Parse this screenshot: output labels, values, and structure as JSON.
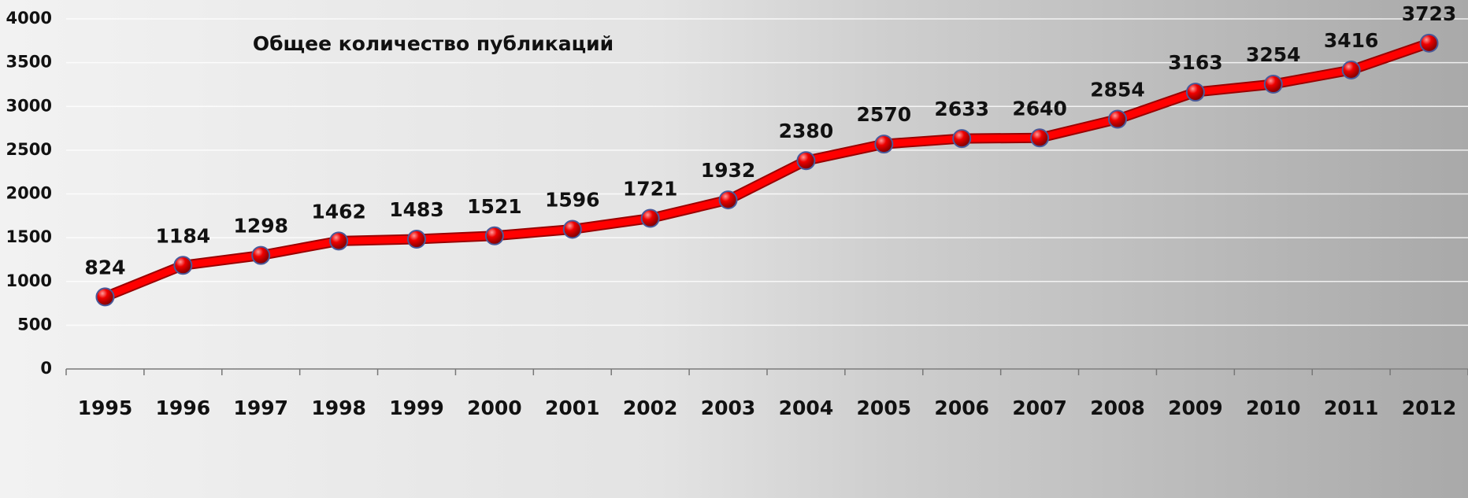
{
  "chart_data": {
    "type": "line",
    "title": "Общее количество публикаций",
    "categories": [
      "1995",
      "1996",
      "1997",
      "1998",
      "1999",
      "2000",
      "2001",
      "2002",
      "2003",
      "2004",
      "2005",
      "2006",
      "2007",
      "2008",
      "2009",
      "2010",
      "2011",
      "2012"
    ],
    "series": [
      {
        "name": "Общее количество публикаций",
        "color": "#ff0000",
        "values": [
          824,
          1184,
          1298,
          1462,
          1483,
          1521,
          1596,
          1721,
          1932,
          2380,
          2570,
          2633,
          2640,
          2854,
          3163,
          3254,
          3416,
          3723
        ]
      }
    ],
    "ylim": [
      0,
      4000
    ],
    "yticks": [
      0,
      500,
      1000,
      1500,
      2000,
      2500,
      3000,
      3500,
      4000
    ],
    "grid": true
  }
}
